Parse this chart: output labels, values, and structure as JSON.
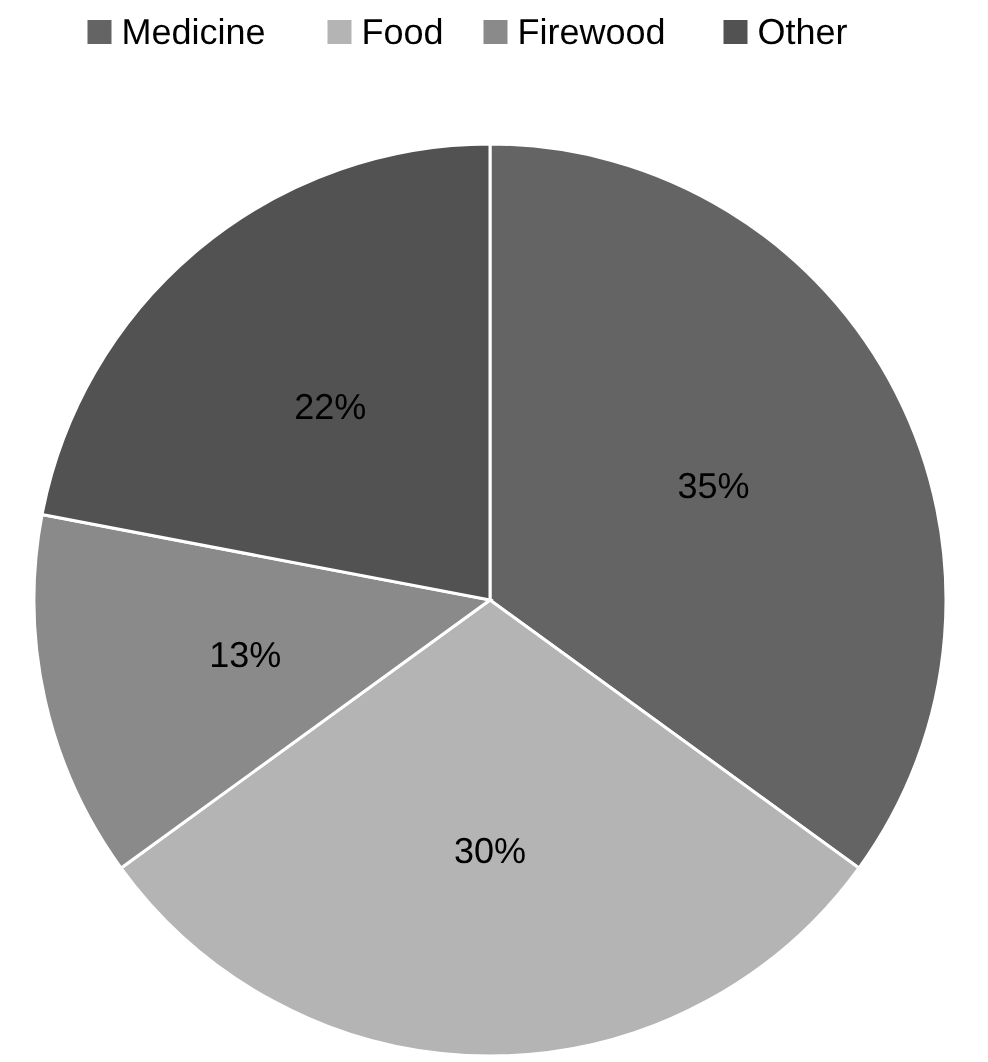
{
  "chart_data": {
    "type": "pie",
    "categories": [
      "Medicine",
      "Food",
      "Firewood",
      "Other"
    ],
    "values": [
      35,
      30,
      13,
      22
    ],
    "colors": [
      "#646464",
      "#b4b4b4",
      "#8a8a8a",
      "#525252"
    ],
    "value_labels": [
      "35%",
      "30%",
      "13%",
      "22%"
    ],
    "legend": "top"
  }
}
